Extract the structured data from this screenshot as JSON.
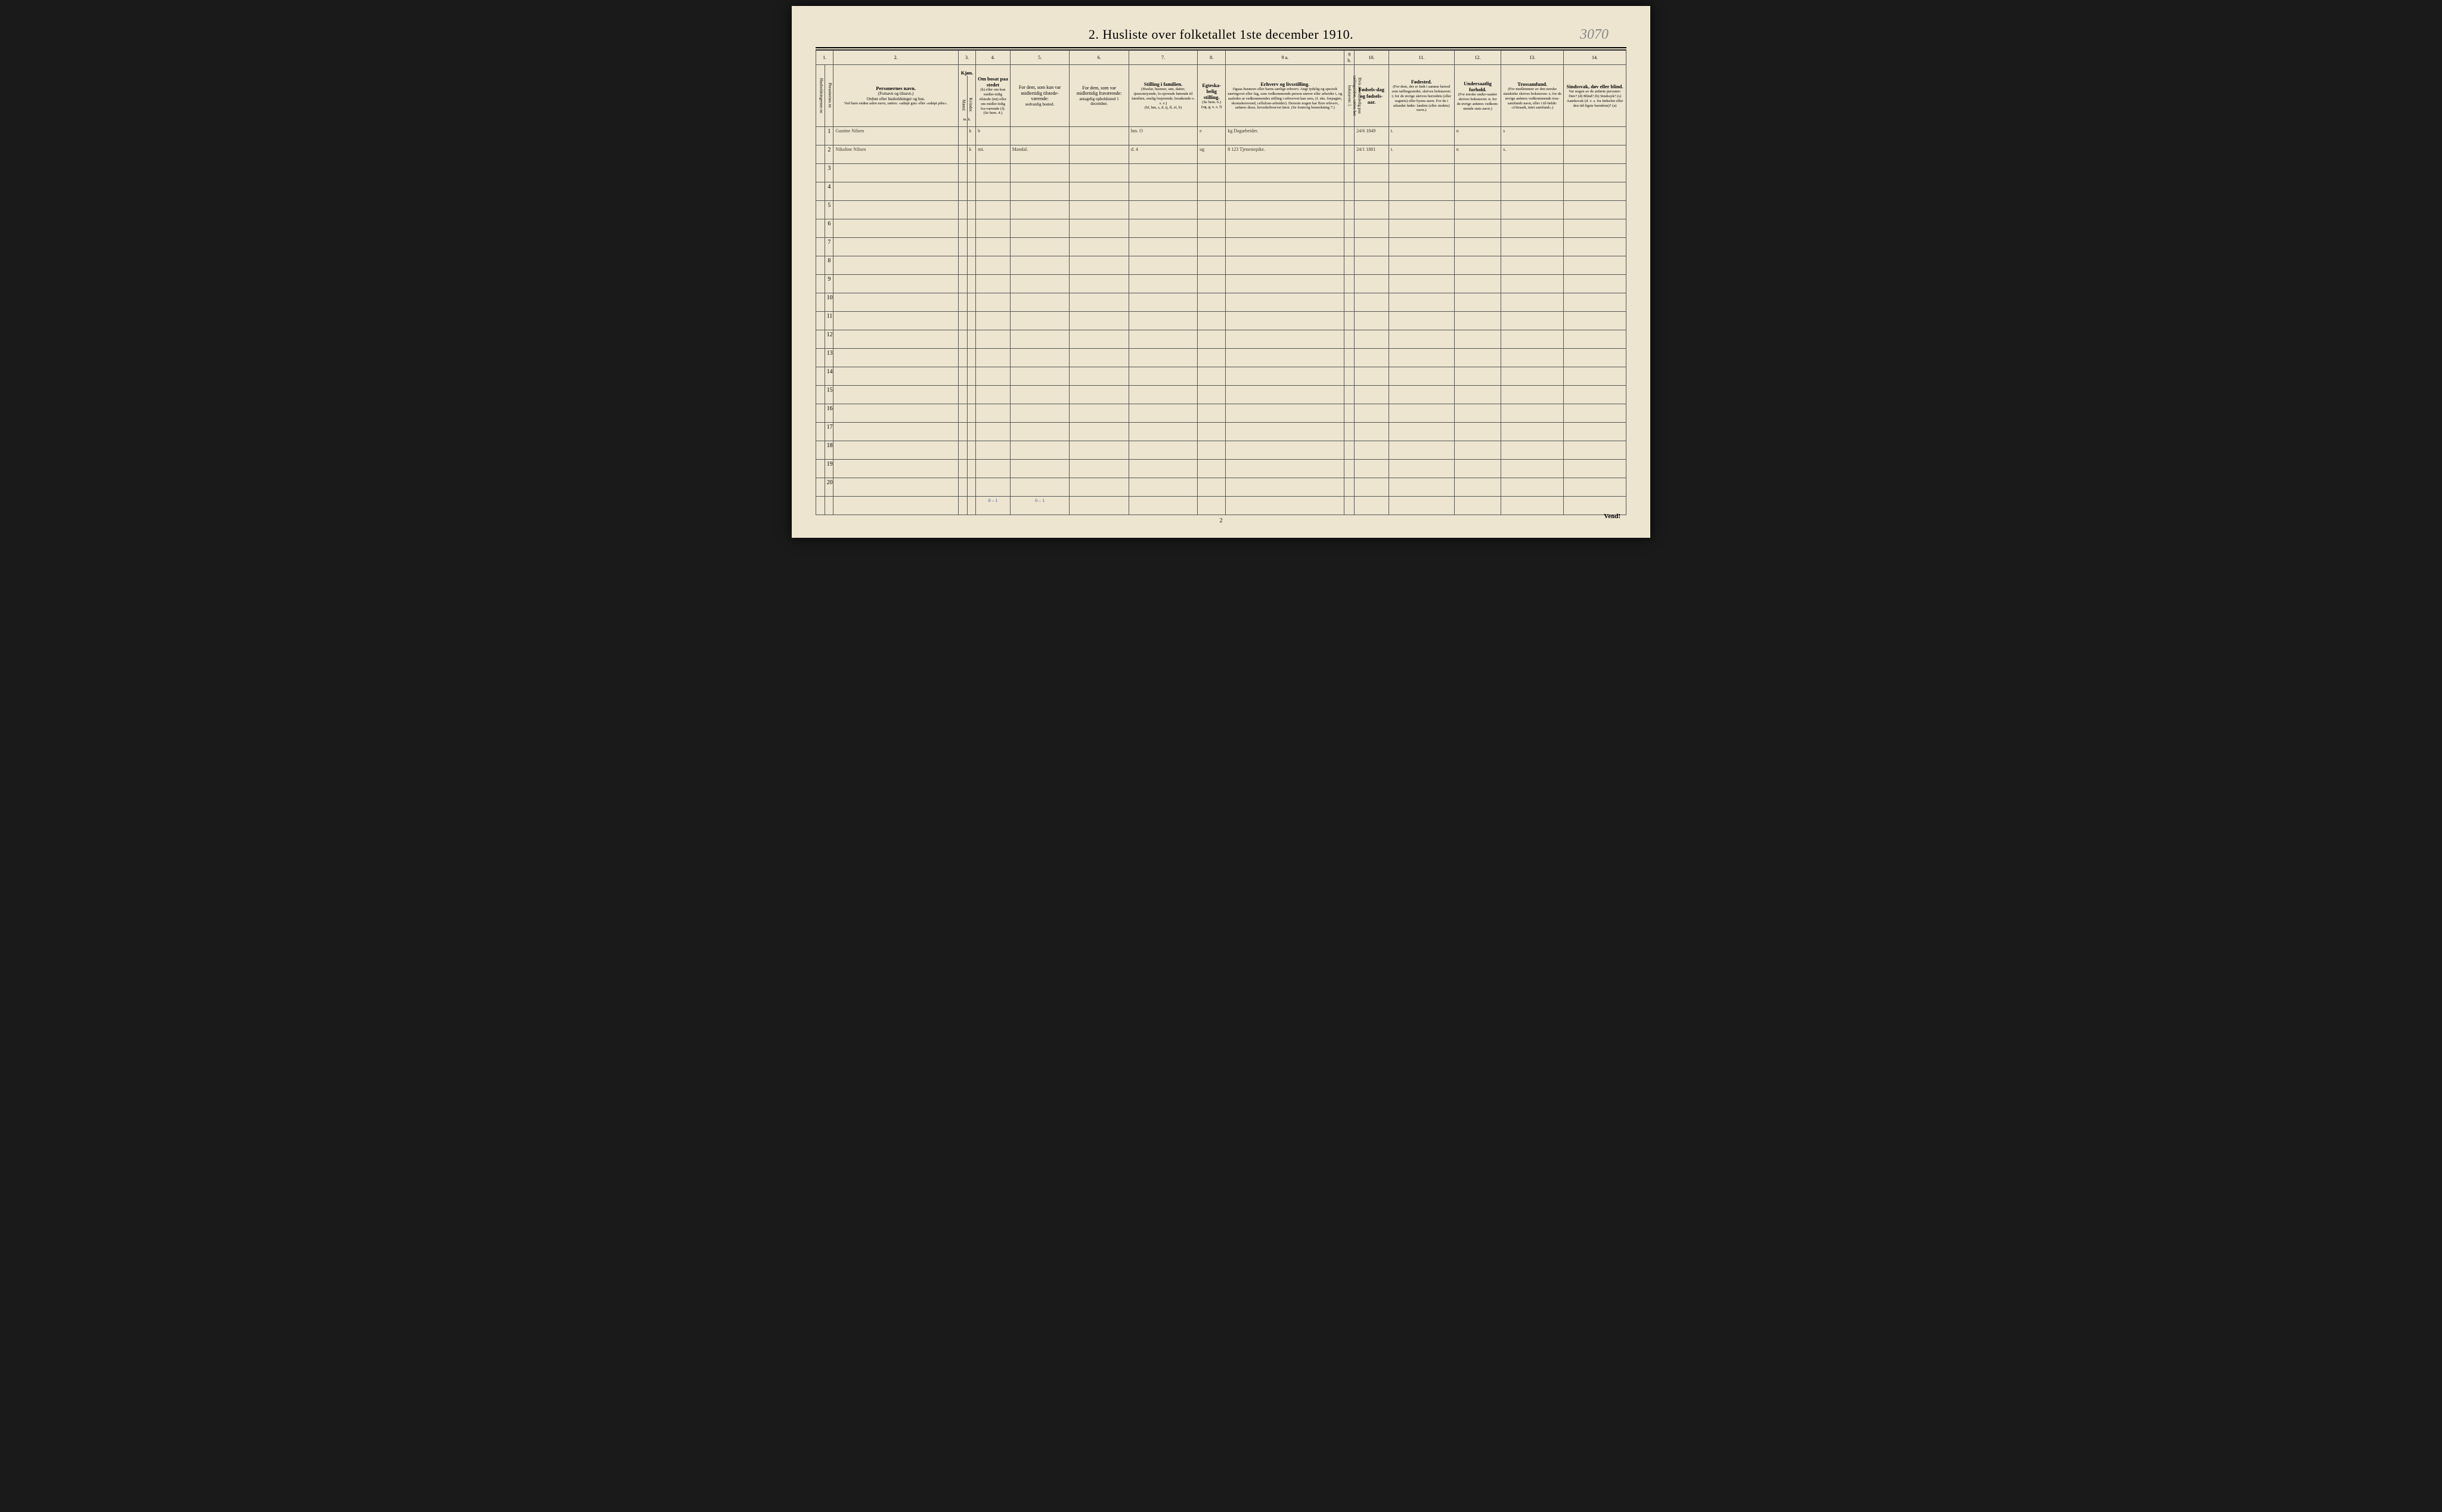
{
  "title": "2.  Husliste over folketallet 1ste december 1910.",
  "topAnnotation": "3070",
  "pageNumber": "2",
  "vend": "Vend!",
  "colNumbers": [
    "1.",
    "2.",
    "3.",
    "4.",
    "5.",
    "6.",
    "7.",
    "8.",
    "9 a.",
    "9 b.",
    "10.",
    "11.",
    "12.",
    "13.",
    "14."
  ],
  "headers": {
    "c1a": "Husholdningernes nr.",
    "c1b": "Personernes nr.",
    "c2_title": "Personernes navn.",
    "c2_sub1": "(Fornavn og tilnavn.)",
    "c2_sub2": "Ordnet efter husholdninger og hus.",
    "c2_sub3": "Ved barn endnu uden navn, sættes: «udøpt gut» eller «udøpt pike».",
    "c3_title": "Kjøn.",
    "c3_m": "Mænd.",
    "c3_k": "Kvinder.",
    "c3_mk": "m.  k.",
    "c4_title": "Om bosat paa stedet",
    "c4_sub": "(b) eller om kun midler-tidig tilstede (mt) eller om midler-tidig fra-værende (f). (Se bem. 4.)",
    "c5_title": "For dem, som kun var midlertidig tilstede-værende:",
    "c5_sub": "sedvanlig bosted.",
    "c6_title": "For dem, som var midlertidig fraværende:",
    "c6_sub": "antagelig opholdssted 1 december.",
    "c7_title": "Stilling i familien.",
    "c7_sub1": "(Husfar, husmor, søn, datter, tjenestetyende, lo-sjerende hørende til familien, enslig losjerende, besøkende o. s. v.)",
    "c7_sub2": "(hf, hm, s, d, tj, fl, el, b)",
    "c8_title": "Egteska-belig stilling.",
    "c8_sub": "(Se bem. 6.) (ug, g, e, s, f)",
    "c9a_title": "Erhverv og livsstilling.",
    "c9a_sub": "Ogsaa husmors eller barns særlige erhverv. Angi tydelig og specielt næringsvei eller fag, som vedkommende person utøver eller arbeider i, og saaledes at vedkommendes stilling i erhvervet kan sees, (f. eks. forpagter, skomakersvend, cellulose-arbeider). Dersom nogen har flere erhverv, anføres disse, hovederhvervet først. (Se forøvrig bemerkning 7.)",
    "c9b": "Hvis arbeidsledig paa tællingstiden, sættes her bokstaven: l.",
    "c10_title": "Fødsels-dag og fødsels-aar.",
    "c11_title": "Fødested.",
    "c11_sub": "(For dem, der er født i samme herred som tællingsstedet, skrives bokstaven: t; for de øvrige skrives herredets (eller sognets) eller byens navn. For de i utlandet fødte: landets (eller stedets) navn.)",
    "c12_title": "Undersaatlig forhold.",
    "c12_sub": "(For norske under-saatter skrives bokstaven: n; for de øvrige anføres vedkom-mende stats navn.)",
    "c13_title": "Trossamfund.",
    "c13_sub": "(For medlemmer av den norske statskirke skrives bokstaven: s; for de øvrige anføres vedkommende tros-samfunds navn, eller i til-fælde: «Uttraadt, intet samfund».)",
    "c14_title": "Sindssvak, døv eller blind.",
    "c14_sub": "Var nogen av de anførte personer: Døv? (d) Blind? (b) Sindssyk? (s) Aandssvak (d. v. s. fra fødselen eller den tid-ligste barndom)? (a)"
  },
  "rows": [
    {
      "num": "1",
      "name": "Gustine Nilsen",
      "sex": "k",
      "resident": "b",
      "tempPresent": "",
      "tempAbsent": "",
      "famPos": "hm.    O",
      "marital": "e",
      "occupation": "kg   Dagarbeider.",
      "workless": "",
      "birth": "24/6 1849",
      "birthplace": "t.",
      "nationality": "n",
      "religion": "s",
      "disability": ""
    },
    {
      "num": "2",
      "name": "Nikoline Nilsen",
      "sex": "k",
      "resident": "mt.",
      "tempPresent": "Mandal.",
      "tempAbsent": "",
      "famPos": "d.    4",
      "marital": "ug",
      "occupation": "8 123 Tjenestepike.",
      "workless": "",
      "birth": "24/1 1881",
      "birthplace": "t.",
      "nationality": "n",
      "religion": "s.",
      "disability": ""
    }
  ],
  "emptyRows": [
    "3",
    "4",
    "5",
    "6",
    "7",
    "8",
    "9",
    "10",
    "11",
    "12",
    "13",
    "14",
    "15",
    "16",
    "17",
    "18",
    "19",
    "20"
  ],
  "footerAnnot": {
    "col4": "0 – 1",
    "col5": "0 – 1"
  },
  "columnWidths": {
    "c1a": 14,
    "c1b": 14,
    "c2": 200,
    "c3m": 14,
    "c3k": 14,
    "c4": 55,
    "c5": 95,
    "c6": 95,
    "c7": 110,
    "c8": 45,
    "c9a": 190,
    "c9b": 16,
    "c10": 55,
    "c11": 105,
    "c12": 75,
    "c13": 100,
    "c14": 100
  },
  "styling": {
    "pageBg": "#ede5d0",
    "ink": "#000000",
    "handwriting": "#3a3528",
    "blueInk": "#4a5aa0",
    "pencil": "#888888",
    "titleFontSize": 22,
    "headerFontSize": 8,
    "bodyRowHeight": 26
  }
}
